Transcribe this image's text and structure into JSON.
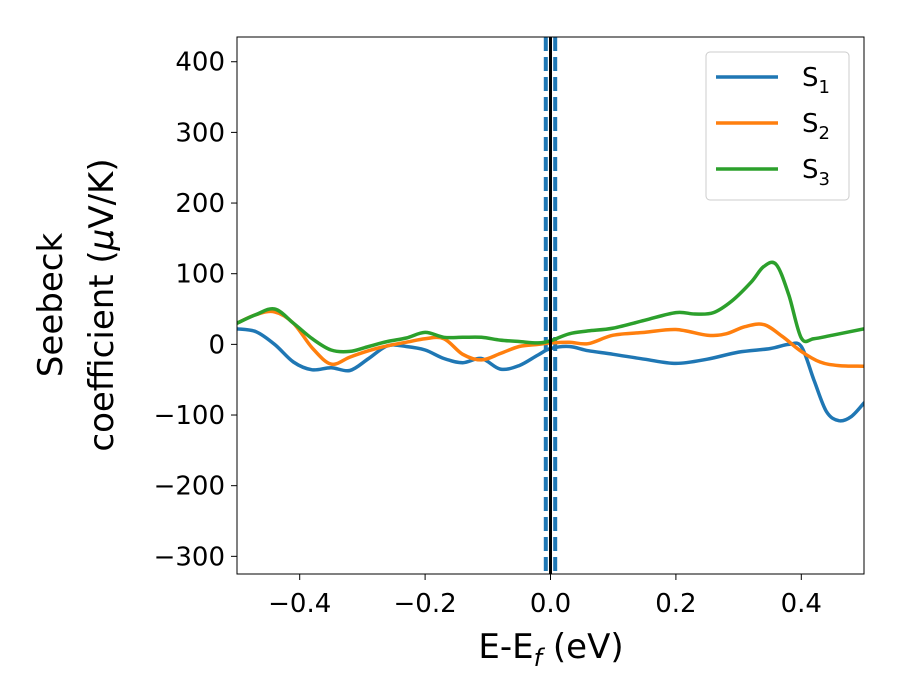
{
  "chart_data": {
    "type": "line",
    "xlabel": {
      "main": "E-E",
      "sub": "f",
      "unit": " (eV)"
    },
    "ylabel": {
      "line1": "Seebeck",
      "line2": "coefficient  (",
      "mu": "μ",
      "unit": "V/K)"
    },
    "xlim": [
      -0.5,
      0.5
    ],
    "ylim": [
      -325,
      435
    ],
    "xticks": [
      -0.4,
      -0.2,
      0.0,
      0.2,
      0.4
    ],
    "xtick_labels": [
      "−0.4",
      "−0.2",
      "0.0",
      "0.2",
      "0.4"
    ],
    "yticks": [
      -300,
      -200,
      -100,
      0,
      100,
      200,
      300,
      400
    ],
    "ytick_labels": [
      "−300",
      "−200",
      "−100",
      "0",
      "100",
      "200",
      "300",
      "400"
    ],
    "grid": false,
    "legend_position": "top-right",
    "fermi_line": {
      "x": 0.0,
      "color": "#000000"
    },
    "window_lines": {
      "x": [
        -0.0075,
        0.0075
      ],
      "color": "#1f77b4",
      "style": "dashed"
    },
    "series": [
      {
        "name": "S",
        "sub": "1",
        "color": "#1f77b4",
        "x": [
          -0.5,
          -0.47,
          -0.44,
          -0.41,
          -0.38,
          -0.35,
          -0.32,
          -0.29,
          -0.26,
          -0.23,
          -0.2,
          -0.17,
          -0.14,
          -0.11,
          -0.08,
          -0.05,
          -0.02,
          0.0,
          0.03,
          0.06,
          0.1,
          0.15,
          0.2,
          0.25,
          0.3,
          0.35,
          0.38,
          0.4,
          0.42,
          0.44,
          0.46,
          0.48,
          0.5
        ],
        "y": [
          22,
          18,
          0,
          -25,
          -36,
          -33,
          -37,
          -20,
          -2,
          -3,
          -8,
          -20,
          -26,
          -20,
          -35,
          -30,
          -15,
          -6,
          -3,
          -9,
          -14,
          -21,
          -27,
          -21,
          -11,
          -6,
          0,
          -3,
          -50,
          -95,
          -108,
          -102,
          -83
        ]
      },
      {
        "name": "S",
        "sub": "2",
        "color": "#ff7f0e",
        "x": [
          -0.5,
          -0.47,
          -0.44,
          -0.41,
          -0.38,
          -0.35,
          -0.32,
          -0.29,
          -0.26,
          -0.23,
          -0.2,
          -0.17,
          -0.14,
          -0.11,
          -0.08,
          -0.05,
          -0.02,
          0.0,
          0.03,
          0.06,
          0.1,
          0.15,
          0.2,
          0.25,
          0.28,
          0.31,
          0.34,
          0.37,
          0.4,
          0.43,
          0.46,
          0.5
        ],
        "y": [
          30,
          42,
          46,
          30,
          -5,
          -28,
          -18,
          -9,
          -2,
          3,
          8,
          8,
          -14,
          -22,
          -13,
          -3,
          0,
          2,
          3,
          1,
          13,
          17,
          21,
          13,
          15,
          25,
          28,
          11,
          -10,
          -25,
          -30,
          -31
        ]
      },
      {
        "name": "S",
        "sub": "3",
        "color": "#2ca02c",
        "x": [
          -0.5,
          -0.47,
          -0.44,
          -0.41,
          -0.38,
          -0.35,
          -0.32,
          -0.29,
          -0.26,
          -0.23,
          -0.2,
          -0.17,
          -0.14,
          -0.11,
          -0.08,
          -0.05,
          -0.02,
          0.0,
          0.03,
          0.06,
          0.1,
          0.15,
          0.2,
          0.23,
          0.26,
          0.29,
          0.32,
          0.34,
          0.36,
          0.38,
          0.4,
          0.42,
          0.45,
          0.5
        ],
        "y": [
          30,
          42,
          50,
          30,
          8,
          -8,
          -10,
          -3,
          4,
          9,
          17,
          10,
          10,
          10,
          6,
          4,
          2,
          5,
          15,
          19,
          23,
          34,
          45,
          43,
          45,
          62,
          88,
          110,
          113,
          70,
          9,
          8,
          13,
          22
        ]
      }
    ]
  }
}
